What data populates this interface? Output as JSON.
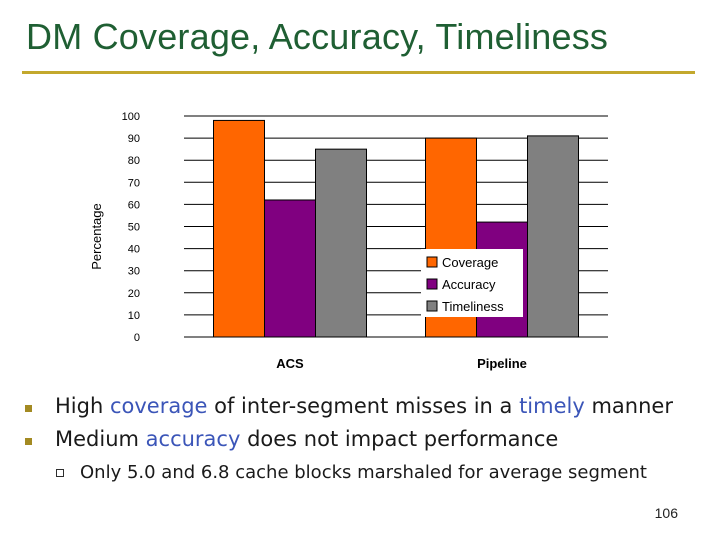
{
  "slide": {
    "title": "DM Coverage, Accuracy, Timeliness",
    "page_number": "106"
  },
  "bullets": [
    {
      "parts": [
        {
          "text": "High ",
          "highlight": false
        },
        {
          "text": "coverage",
          "highlight": true
        },
        {
          "text": " of inter-segment misses in a ",
          "highlight": false
        },
        {
          "text": "timely",
          "highlight": true
        },
        {
          "text": " manner",
          "highlight": false
        }
      ]
    },
    {
      "parts": [
        {
          "text": "Medium ",
          "highlight": false
        },
        {
          "text": "accuracy",
          "highlight": true
        },
        {
          "text": " does not impact performance",
          "highlight": false
        }
      ]
    }
  ],
  "sub_bullets": [
    "Only 5.0 and 6.8 cache blocks marshaled for average segment"
  ],
  "colors": {
    "title": "#1f5f33",
    "rule": "#c3a82d",
    "bullet_marker": "#a38a22",
    "highlight_text": "#3b55b8"
  },
  "chart_data": {
    "type": "bar",
    "categories": [
      "ACS",
      "Pipeline"
    ],
    "series": [
      {
        "name": "Coverage",
        "values": [
          98,
          90
        ],
        "color": "#ff6600"
      },
      {
        "name": "Accuracy",
        "values": [
          62,
          52
        ],
        "color": "#800080"
      },
      {
        "name": "Timeliness",
        "values": [
          85,
          91
        ],
        "color": "#808080"
      }
    ],
    "title": "",
    "xlabel": "",
    "ylabel": "Percentage",
    "ylim": [
      0,
      100
    ],
    "yticks": [
      0,
      10,
      20,
      30,
      40,
      50,
      60,
      70,
      80,
      90,
      100
    ],
    "grid": true,
    "legend_position": "right"
  }
}
